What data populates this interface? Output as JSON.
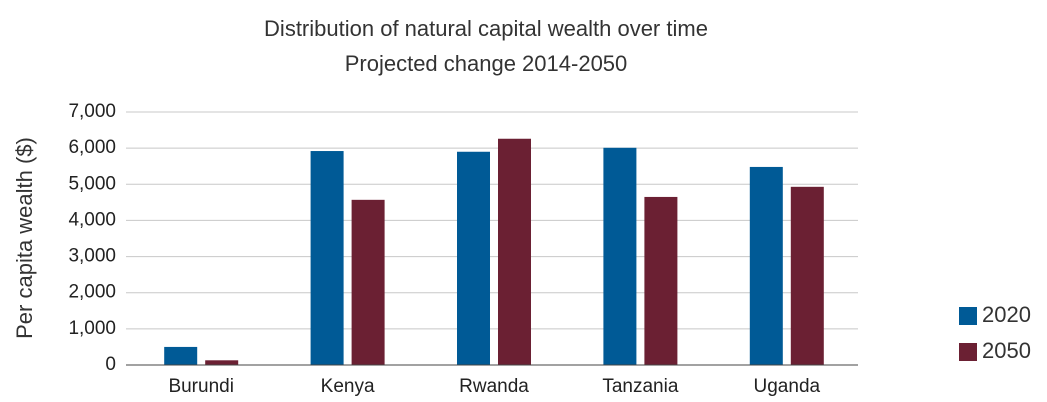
{
  "chart_data": {
    "type": "bar",
    "title": "Distribution of natural capital wealth over time",
    "subtitle": "Projected change 2014-2050",
    "y_label": "Per capita wealth ($)",
    "categories": [
      "Burundi",
      "Kenya",
      "Rwanda",
      "Tanzania",
      "Uganda"
    ],
    "series": [
      {
        "name": "2020",
        "color": "#005a96",
        "values": [
          500,
          5920,
          5900,
          6010,
          5480
        ]
      },
      {
        "name": "2050",
        "color": "#6b2033",
        "values": [
          130,
          4570,
          6260,
          4650,
          4930
        ]
      }
    ],
    "ylim": [
      0,
      7000
    ],
    "yticks": [
      0,
      {
        "value": 1000,
        "label": "1,000"
      },
      {
        "value": 2000,
        "label": "2,000"
      },
      {
        "value": 3000,
        "label": "3,000"
      },
      {
        "value": 4000,
        "label": "4,000"
      },
      {
        "value": 5000,
        "label": "5,000"
      },
      {
        "value": 6000,
        "label": "6,000"
      },
      {
        "value": 7000,
        "label": "7,000"
      }
    ],
    "grid": true,
    "legend": "right"
  }
}
